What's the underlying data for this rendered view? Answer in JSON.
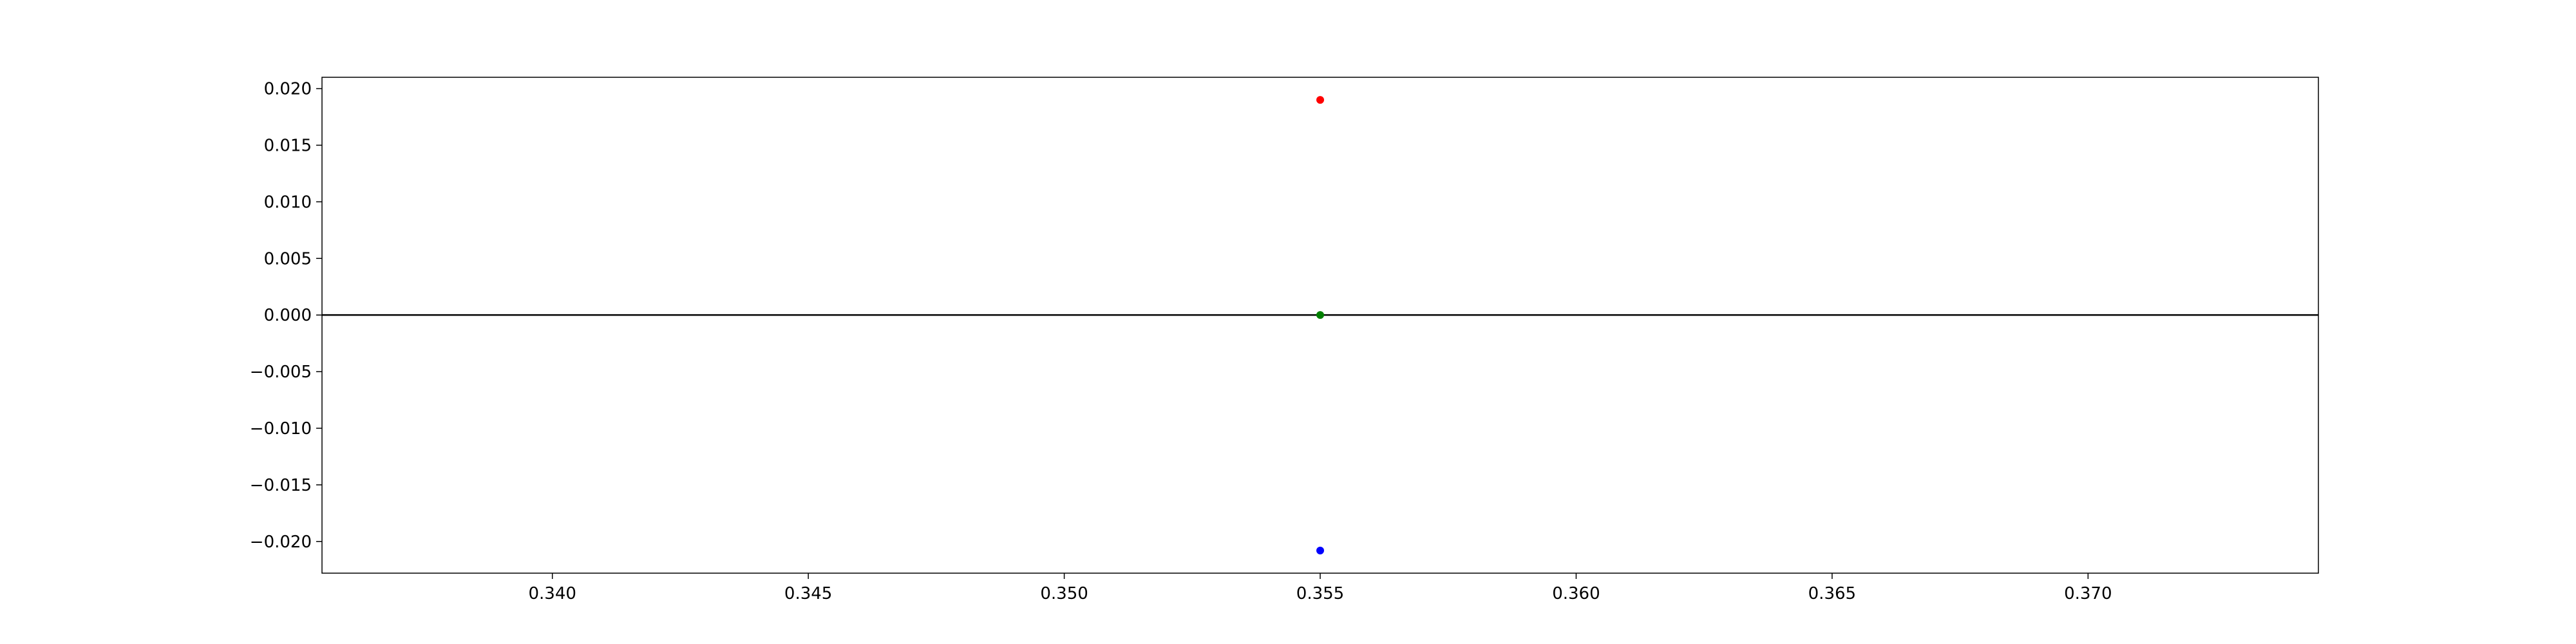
{
  "chart_data": {
    "type": "scatter",
    "title": "",
    "xlabel": "",
    "ylabel": "",
    "xlim": [
      0.3355,
      0.3745
    ],
    "ylim": [
      -0.0228,
      0.021
    ],
    "x_ticks": [
      0.34,
      0.345,
      0.35,
      0.355,
      0.36,
      0.365,
      0.37
    ],
    "x_tick_labels": [
      "0.340",
      "0.345",
      "0.350",
      "0.355",
      "0.360",
      "0.365",
      "0.370"
    ],
    "y_ticks": [
      0.02,
      0.015,
      0.01,
      0.005,
      0.0,
      -0.005,
      -0.01,
      -0.015,
      -0.02
    ],
    "y_tick_labels": [
      "0.020",
      "0.015",
      "0.010",
      "0.005",
      "0.000",
      "−0.005",
      "−0.010",
      "−0.015",
      "−0.020"
    ],
    "grid": false,
    "legend": "none",
    "reference_line": {
      "y": 0.0,
      "color": "#000000"
    },
    "series": [
      {
        "x": [
          0.355
        ],
        "y": [
          0.019
        ],
        "color": "#ff0000"
      },
      {
        "x": [
          0.355
        ],
        "y": [
          0.0
        ],
        "color": "#008000"
      },
      {
        "x": [
          0.355
        ],
        "y": [
          -0.0208
        ],
        "color": "#0000ff"
      }
    ]
  }
}
